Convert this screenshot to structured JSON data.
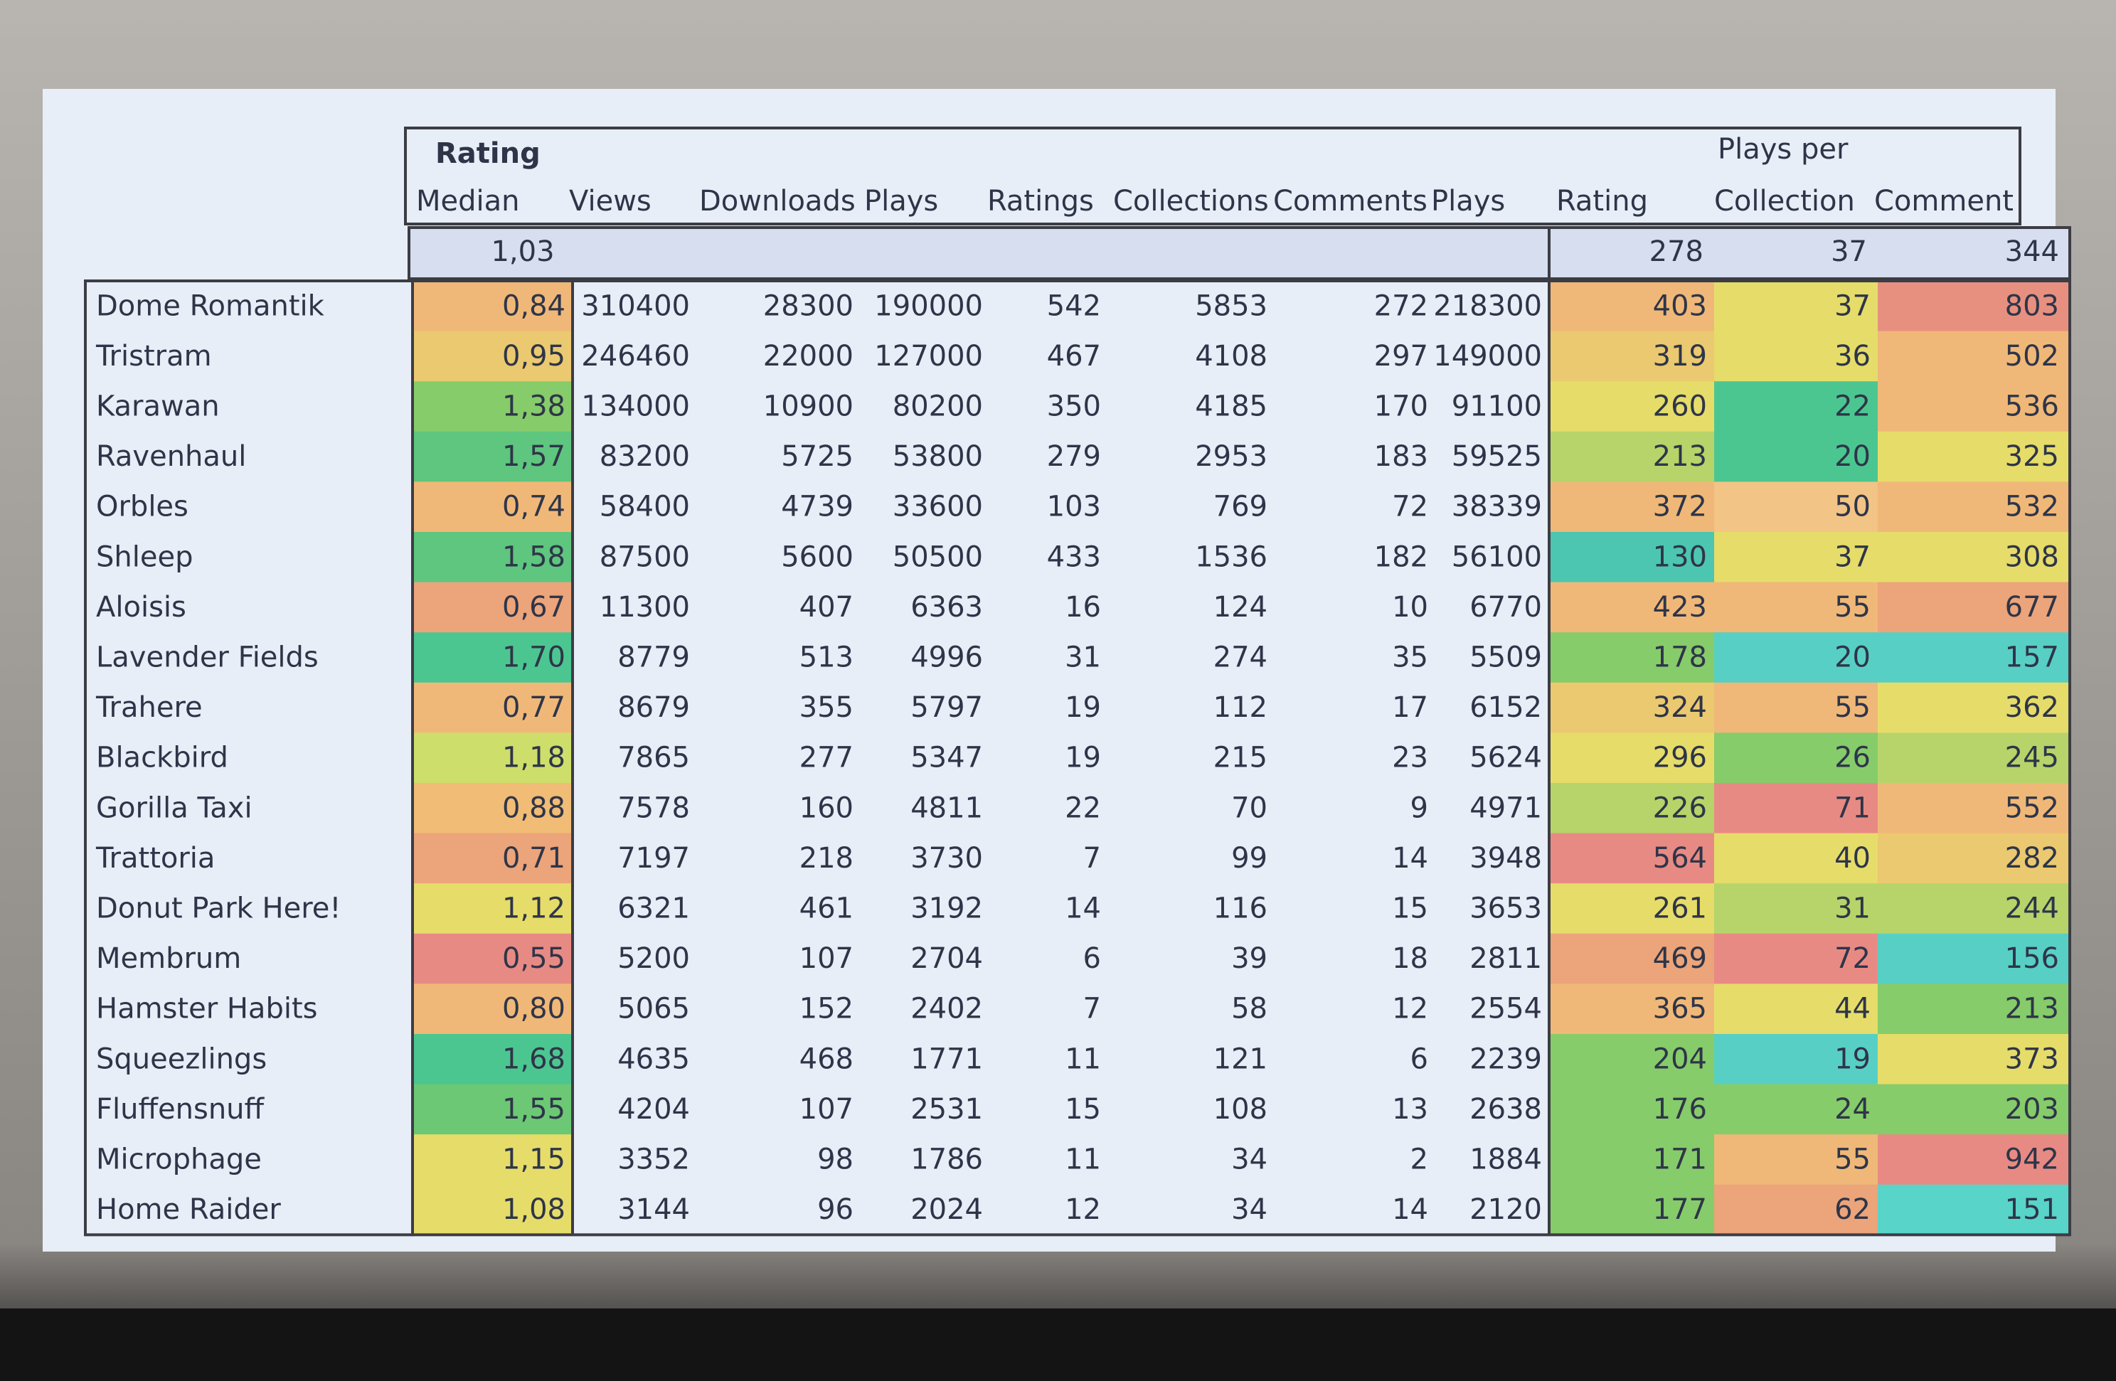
{
  "header": {
    "group_rating": "Rating",
    "group_plays_per": "Plays per",
    "columns": [
      "Median",
      "Views",
      "Downloads",
      "Plays",
      "Ratings",
      "Collections",
      "Comments",
      "Plays",
      "Rating",
      "Collection",
      "Comment"
    ]
  },
  "summary": {
    "median": "1,03",
    "rating": 278,
    "collection": 37,
    "comment": 344
  },
  "rows": [
    {
      "name": "Dome Romantik",
      "values": [
        "0,84",
        310400,
        28300,
        190000,
        542,
        5853,
        272,
        218300,
        403,
        37,
        803
      ],
      "colors": [
        "#f0b878",
        "#f0b878",
        "#e6dc6a",
        "#e89080"
      ]
    },
    {
      "name": "Tristram",
      "values": [
        "0,95",
        246460,
        22000,
        127000,
        467,
        4108,
        297,
        149000,
        319,
        36,
        502
      ],
      "colors": [
        "#ebc970",
        "#ebc970",
        "#e6dc6a",
        "#f0b878"
      ]
    },
    {
      "name": "Karawan",
      "values": [
        "1,38",
        134000,
        10900,
        80200,
        350,
        4185,
        170,
        91100,
        260,
        22,
        536
      ],
      "colors": [
        "#86cc6a",
        "#e6dc6a",
        "#4cc690",
        "#f0b878"
      ]
    },
    {
      "name": "Ravenhaul",
      "values": [
        "1,57",
        83200,
        5725,
        53800,
        279,
        2953,
        183,
        59525,
        213,
        20,
        325
      ],
      "colors": [
        "#5ec67e",
        "#b6d46a",
        "#4cc690",
        "#e6dc6a"
      ]
    },
    {
      "name": "Orbles",
      "values": [
        "0,74",
        58400,
        4739,
        33600,
        103,
        769,
        72,
        38339,
        372,
        50,
        532
      ],
      "colors": [
        "#f0b878",
        "#f0b878",
        "#f2c486",
        "#f0b878"
      ]
    },
    {
      "name": "Shleep",
      "values": [
        "1,58",
        87500,
        5600,
        50500,
        433,
        1536,
        182,
        56100,
        130,
        37,
        308
      ],
      "colors": [
        "#5ec67e",
        "#4cc6b0",
        "#e6dc6a",
        "#e6dc6a"
      ]
    },
    {
      "name": "Aloisis",
      "values": [
        "0,67",
        11300,
        407,
        6363,
        16,
        124,
        10,
        6770,
        423,
        55,
        677
      ],
      "colors": [
        "#eca47a",
        "#f0b878",
        "#f0b878",
        "#eca47a"
      ]
    },
    {
      "name": "Lavender Fields",
      "values": [
        "1,70",
        8779,
        513,
        4996,
        31,
        274,
        35,
        5509,
        178,
        20,
        157
      ],
      "colors": [
        "#4cc690",
        "#86cc6a",
        "#58cfc4",
        "#58cfc4"
      ]
    },
    {
      "name": "Trahere",
      "values": [
        "0,77",
        8679,
        355,
        5797,
        19,
        112,
        17,
        6152,
        324,
        55,
        362
      ],
      "colors": [
        "#f0b878",
        "#ebc970",
        "#f0b878",
        "#e6dc6a"
      ]
    },
    {
      "name": "Blackbird",
      "values": [
        "1,18",
        7865,
        277,
        5347,
        19,
        215,
        23,
        5624,
        296,
        26,
        245
      ],
      "colors": [
        "#cede6a",
        "#e6dc6a",
        "#86cc6a",
        "#b6d46a"
      ]
    },
    {
      "name": "Gorilla Taxi",
      "values": [
        "0,88",
        7578,
        160,
        4811,
        22,
        70,
        9,
        4971,
        226,
        71,
        552
      ],
      "colors": [
        "#f0bc76",
        "#b6d46a",
        "#e88a84",
        "#f0b878"
      ]
    },
    {
      "name": "Trattoria",
      "values": [
        "0,71",
        7197,
        218,
        3730,
        7,
        99,
        14,
        3948,
        564,
        40,
        282
      ],
      "colors": [
        "#eca47a",
        "#e88a84",
        "#e6dc6a",
        "#ebc970"
      ]
    },
    {
      "name": "Donut Park Here!",
      "values": [
        "1,12",
        6321,
        461,
        3192,
        14,
        116,
        15,
        3653,
        261,
        31,
        244
      ],
      "colors": [
        "#e6dc6a",
        "#e6dc6a",
        "#b6d46a",
        "#b6d46a"
      ]
    },
    {
      "name": "Membrum",
      "values": [
        "0,55",
        5200,
        107,
        2704,
        6,
        39,
        18,
        2811,
        469,
        72,
        156
      ],
      "colors": [
        "#e88a84",
        "#eca47a",
        "#e88a84",
        "#58cfc4"
      ]
    },
    {
      "name": "Hamster Habits",
      "values": [
        "0,80",
        5065,
        152,
        2402,
        7,
        58,
        12,
        2554,
        365,
        44,
        213
      ],
      "colors": [
        "#f0b878",
        "#f0b878",
        "#e6dc6a",
        "#86cc6a"
      ]
    },
    {
      "name": "Squeezlings",
      "values": [
        "1,68",
        4635,
        468,
        1771,
        11,
        121,
        6,
        2239,
        204,
        19,
        373
      ],
      "colors": [
        "#4cc690",
        "#86cc6a",
        "#58cfc4",
        "#e6dc6a"
      ]
    },
    {
      "name": "Fluffensnuff",
      "values": [
        "1,55",
        4204,
        107,
        2531,
        15,
        108,
        13,
        2638,
        176,
        24,
        203
      ],
      "colors": [
        "#6cc874",
        "#86cc6a",
        "#86cc6a",
        "#86cc6a"
      ]
    },
    {
      "name": "Microphage",
      "values": [
        "1,15",
        3352,
        98,
        1786,
        11,
        34,
        2,
        1884,
        171,
        55,
        942
      ],
      "colors": [
        "#e6dc6a",
        "#86cc6a",
        "#f0b878",
        "#e88a84"
      ]
    },
    {
      "name": "Home Raider",
      "values": [
        "1,08",
        3144,
        96,
        2024,
        12,
        34,
        14,
        2120,
        177,
        62,
        151
      ],
      "colors": [
        "#e6dc6a",
        "#86cc6a",
        "#eca47a",
        "#58d4c8"
      ]
    }
  ]
}
